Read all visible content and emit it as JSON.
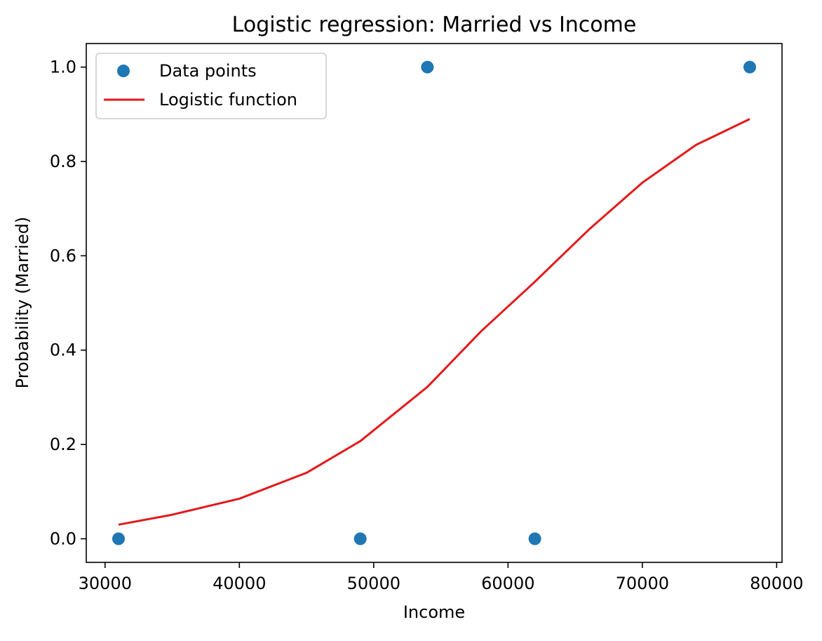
{
  "colors": {
    "scatter": "#1f77b4",
    "curve": "#e31a1c",
    "axes": "#000000",
    "legend_border": "#cccccc",
    "background": "#ffffff"
  },
  "chart_data": {
    "type": "scatter",
    "title": "Logistic regression: Married vs Income",
    "xlabel": "Income",
    "ylabel": "Probability (Married)",
    "xlim": [
      28600,
      80400
    ],
    "ylim": [
      -0.05,
      1.05
    ],
    "xticks": [
      30000,
      40000,
      50000,
      60000,
      70000,
      80000
    ],
    "xtick_labels": [
      "30000",
      "40000",
      "50000",
      "60000",
      "70000",
      "80000"
    ],
    "yticks": [
      0.0,
      0.2,
      0.4,
      0.6,
      0.8,
      1.0
    ],
    "ytick_labels": [
      "0.0",
      "0.2",
      "0.4",
      "0.6",
      "0.8",
      "1.0"
    ],
    "grid": false,
    "legend": {
      "position": "upper-left",
      "entries": [
        {
          "label": "Data points",
          "marker": "circle",
          "series": "scatter"
        },
        {
          "label": "Logistic function",
          "marker": "line",
          "series": "curve"
        }
      ]
    },
    "series": [
      {
        "name": "Data points",
        "type": "scatter",
        "color": "#1f77b4",
        "points": [
          {
            "x": 31000,
            "y": 0
          },
          {
            "x": 49000,
            "y": 0
          },
          {
            "x": 54000,
            "y": 1
          },
          {
            "x": 62000,
            "y": 0
          },
          {
            "x": 78000,
            "y": 1
          }
        ]
      },
      {
        "name": "Logistic function",
        "type": "line",
        "color": "#e31a1c",
        "points": [
          {
            "x": 31000,
            "y": 0.03
          },
          {
            "x": 35000,
            "y": 0.051
          },
          {
            "x": 40000,
            "y": 0.085
          },
          {
            "x": 45000,
            "y": 0.14
          },
          {
            "x": 49000,
            "y": 0.207
          },
          {
            "x": 54000,
            "y": 0.322
          },
          {
            "x": 58000,
            "y": 0.44
          },
          {
            "x": 62000,
            "y": 0.545
          },
          {
            "x": 66000,
            "y": 0.655
          },
          {
            "x": 70000,
            "y": 0.755
          },
          {
            "x": 74000,
            "y": 0.835
          },
          {
            "x": 78000,
            "y": 0.89
          }
        ]
      }
    ]
  }
}
